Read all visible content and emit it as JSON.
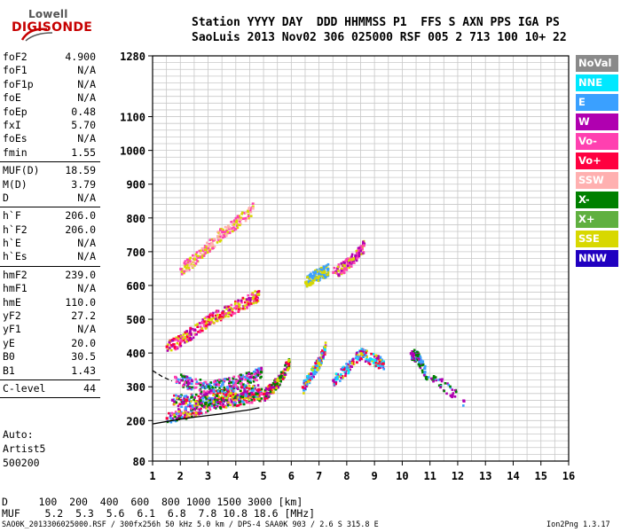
{
  "logo": {
    "top": "Lowell",
    "bottom": "DIGISONDE",
    "color_top": "#555555",
    "color_bottom": "#c60000"
  },
  "header": {
    "line1": "Station YYYY DAY  DDD HHMMSS P1  FFS S AXN PPS IGA PS",
    "line2": "SaoLuis 2013 Nov02 306 025000 RSF 005 2 713 100 10+ 22"
  },
  "params": [
    {
      "name": "foF2",
      "value": "4.900"
    },
    {
      "name": "foF1",
      "value": "N/A"
    },
    {
      "name": "foF1p",
      "value": "N/A"
    },
    {
      "name": "foE",
      "value": "N/A"
    },
    {
      "name": "foEp",
      "value": "0.48"
    },
    {
      "name": "fxI",
      "value": "5.70"
    },
    {
      "name": "foEs",
      "value": "N/A"
    },
    {
      "name": "fmin",
      "value": "1.55"
    },
    {
      "sep": true
    },
    {
      "name": "MUF(D)",
      "value": "18.59"
    },
    {
      "name": "M(D)",
      "value": "3.79"
    },
    {
      "name": "D",
      "value": "N/A"
    },
    {
      "sep": true
    },
    {
      "name": "h`F",
      "value": "206.0"
    },
    {
      "name": "h`F2",
      "value": "206.0"
    },
    {
      "name": "h`E",
      "value": "N/A"
    },
    {
      "name": "h`Es",
      "value": "N/A"
    },
    {
      "sep": true
    },
    {
      "name": "hmF2",
      "value": "239.0"
    },
    {
      "name": "hmF1",
      "value": "N/A"
    },
    {
      "name": "hmE",
      "value": "110.0"
    },
    {
      "name": "yF2",
      "value": "27.2"
    },
    {
      "name": "yF1",
      "value": "N/A"
    },
    {
      "name": "yE",
      "value": "20.0"
    },
    {
      "name": "B0",
      "value": "30.5"
    },
    {
      "name": "B1",
      "value": "1.43"
    },
    {
      "sep": true
    },
    {
      "name": "C-level",
      "value": "44"
    },
    {
      "sep": true
    }
  ],
  "autoscale": {
    "line1": "Auto:",
    "line2": "Artist5",
    "line3": "500200"
  },
  "legend": [
    {
      "label": "NoVal",
      "color": "#8a8a8a"
    },
    {
      "label": "NNE",
      "color": "#00e8ff"
    },
    {
      "label": "E",
      "color": "#3aa0ff"
    },
    {
      "label": "W",
      "color": "#b000b0"
    },
    {
      "label": "Vo-",
      "color": "#ff40b0"
    },
    {
      "label": "Vo+",
      "color": "#ff0040"
    },
    {
      "label": "SSW",
      "color": "#ffb0b0"
    },
    {
      "label": "X-",
      "color": "#008000"
    },
    {
      "label": "X+",
      "color": "#60b040"
    },
    {
      "label": "SSE",
      "color": "#d8d800"
    },
    {
      "label": "NNW",
      "color": "#2000c0"
    }
  ],
  "bottom": {
    "d_line": "D     100  200  400  600  800 1000 1500 3000 [km]",
    "muf_line": "MUF    5.2  5.3  5.6  6.1  6.8  7.8 10.8 18.6 [MHz]",
    "footer_left": "SAO0K_2013306025000.RSF / 300fx256h 50 kHz 5.0 km / DPS-4 SAA0K 903 / 2.6 S 315.8 E",
    "footer_right": "Ion2Png 1.3.17"
  },
  "chart_data": {
    "type": "scatter",
    "xlabel": "",
    "ylabel": "",
    "xlim": [
      1,
      16
    ],
    "ylim": [
      80,
      1280
    ],
    "x_ticks": [
      1,
      2,
      3,
      4,
      5,
      6,
      7,
      8,
      9,
      10,
      11,
      12,
      13,
      14,
      15,
      16
    ],
    "y_ticks": [
      80,
      200,
      300,
      400,
      500,
      600,
      700,
      800,
      900,
      1000,
      1100,
      1280
    ],
    "grid": true,
    "profile_line": [
      [
        1.0,
        190
      ],
      [
        1.5,
        197
      ],
      [
        2.0,
        204
      ],
      [
        2.5,
        210
      ],
      [
        3.0,
        215
      ],
      [
        3.5,
        220
      ],
      [
        4.0,
        226
      ],
      [
        4.5,
        232
      ],
      [
        4.85,
        238
      ]
    ],
    "dashed_line": [
      [
        1.0,
        348
      ],
      [
        1.35,
        330
      ],
      [
        1.7,
        317
      ]
    ],
    "traces": [
      {
        "name": "F2 low",
        "x": [
          1.5,
          2.0,
          2.5,
          3.0,
          3.5,
          4.0,
          4.5,
          4.9
        ],
        "y": [
          208,
          222,
          235,
          248,
          258,
          265,
          272,
          280
        ],
        "colors": [
          "#ff0040",
          "#ff40b0",
          "#b000b0",
          "#008000",
          "#3aa0ff",
          "#d8d800"
        ]
      },
      {
        "name": "F2 mid",
        "x": [
          1.7,
          2.2,
          2.8,
          3.3,
          3.8,
          4.3,
          4.8
        ],
        "y": [
          262,
          262,
          268,
          275,
          282,
          288,
          292
        ],
        "colors": [
          "#b000b0",
          "#ff0040",
          "#3aa0ff",
          "#008000",
          "#d8d800"
        ]
      },
      {
        "name": "F2 upper",
        "x": [
          1.8,
          2.3,
          3.0,
          3.5,
          4.0,
          4.5,
          4.9
        ],
        "y": [
          330,
          312,
          302,
          308,
          318,
          330,
          345
        ],
        "colors": [
          "#ff40b0",
          "#b000b0",
          "#008000",
          "#3aa0ff"
        ]
      },
      {
        "name": "2F",
        "x": [
          1.5,
          2.0,
          2.5,
          3.0,
          3.5,
          4.0,
          4.5,
          4.8
        ],
        "y": [
          420,
          440,
          470,
          500,
          520,
          540,
          560,
          575
        ],
        "colors": [
          "#ff0040",
          "#ff40b0",
          "#b000b0",
          "#d8d800"
        ]
      },
      {
        "name": "3F",
        "x": [
          2.0,
          2.5,
          3.0,
          3.5,
          4.0,
          4.6
        ],
        "y": [
          650,
          680,
          720,
          760,
          790,
          830
        ],
        "colors": [
          "#ff40b0",
          "#d8d800",
          "#ffb0b0"
        ]
      },
      {
        "name": "spread 5-6",
        "x": [
          5.0,
          5.3,
          5.6,
          5.9
        ],
        "y": [
          280,
          300,
          330,
          380
        ],
        "colors": [
          "#ff0040",
          "#b000b0",
          "#008000",
          "#d8d800"
        ]
      },
      {
        "name": "spread 6-7",
        "x": [
          6.4,
          6.7,
          7.0,
          7.2
        ],
        "y": [
          300,
          340,
          380,
          420
        ],
        "colors": [
          "#ff0040",
          "#b000b0",
          "#3aa0ff",
          "#d8d800",
          "#00e8ff"
        ]
      },
      {
        "name": "spread 7-9",
        "x": [
          7.5,
          8.0,
          8.5,
          9.0,
          9.3
        ],
        "y": [
          320,
          360,
          400,
          380,
          370
        ],
        "colors": [
          "#b000b0",
          "#3aa0ff",
          "#d8d800",
          "#00e8ff",
          "#ff0040"
        ]
      },
      {
        "name": "upper 6-7",
        "x": [
          6.5,
          6.8,
          7.1,
          7.3
        ],
        "y": [
          610,
          630,
          640,
          650
        ],
        "colors": [
          "#d8d800",
          "#3aa0ff"
        ]
      },
      {
        "name": "upper 7.5-8.5",
        "x": [
          7.5,
          7.9,
          8.3,
          8.6
        ],
        "y": [
          640,
          660,
          690,
          720
        ],
        "colors": [
          "#ff40b0",
          "#d8d800",
          "#b000b0"
        ]
      },
      {
        "name": "isolated",
        "x": [
          10.3,
          10.5,
          10.8,
          12.2
        ],
        "y": [
          400,
          395,
          345,
          260
        ],
        "colors": [
          "#b000b0",
          "#008000",
          "#3aa0ff"
        ]
      }
    ]
  }
}
